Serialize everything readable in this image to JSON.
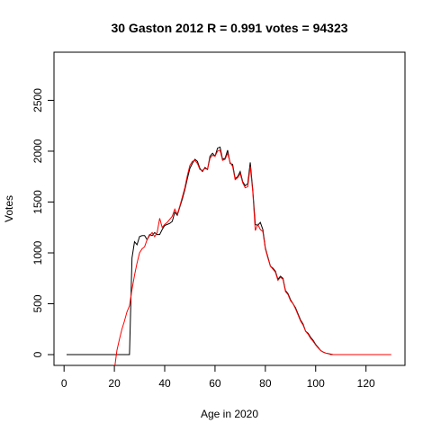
{
  "chart_data": {
    "type": "line",
    "title": "30 Gaston 2012 R = 0.991 votes = 94323",
    "xlabel": "Age in 2020",
    "ylabel": "Votes",
    "x": [
      1,
      2,
      3,
      4,
      5,
      6,
      7,
      8,
      9,
      10,
      11,
      12,
      13,
      14,
      15,
      16,
      17,
      18,
      19,
      20,
      21,
      22,
      23,
      24,
      25,
      26,
      27,
      28,
      29,
      30,
      31,
      32,
      33,
      34,
      35,
      36,
      37,
      38,
      39,
      40,
      41,
      42,
      43,
      44,
      45,
      46,
      47,
      48,
      49,
      50,
      51,
      52,
      53,
      54,
      55,
      56,
      57,
      58,
      59,
      60,
      61,
      62,
      63,
      64,
      65,
      66,
      67,
      68,
      69,
      70,
      71,
      72,
      73,
      74,
      75,
      76,
      77,
      78,
      79,
      80,
      81,
      82,
      83,
      84,
      85,
      86,
      87,
      88,
      89,
      90,
      91,
      92,
      93,
      94,
      95,
      96,
      97,
      98,
      99,
      100,
      101,
      102,
      103,
      104,
      105,
      106,
      107,
      108,
      109,
      110,
      111,
      112,
      113,
      114,
      115,
      116,
      117,
      118,
      119,
      120,
      121,
      122,
      123,
      124,
      125,
      126,
      127,
      128,
      129,
      130
    ],
    "series": [
      {
        "color": "#000000",
        "values": [
          0,
          0,
          0,
          0,
          0,
          0,
          0,
          0,
          0,
          0,
          0,
          0,
          0,
          0,
          0,
          0,
          0,
          0,
          0,
          0,
          0,
          0,
          0,
          0,
          0,
          0,
          950,
          1110,
          1080,
          1160,
          1170,
          1170,
          1130,
          1180,
          1170,
          1200,
          1180,
          1180,
          1230,
          1270,
          1280,
          1290,
          1310,
          1400,
          1370,
          1450,
          1530,
          1620,
          1730,
          1830,
          1880,
          1920,
          1900,
          1830,
          1800,
          1840,
          1820,
          1950,
          1980,
          1950,
          2030,
          2040,
          1920,
          1930,
          2010,
          1880,
          1870,
          1730,
          1750,
          1800,
          1700,
          1660,
          1680,
          1890,
          1620,
          1280,
          1270,
          1300,
          1230,
          1050,
          960,
          870,
          850,
          820,
          740,
          770,
          750,
          630,
          600,
          540,
          500,
          460,
          400,
          340,
          300,
          230,
          210,
          170,
          140,
          100,
          70,
          40,
          25,
          15,
          10,
          5,
          0,
          0,
          0,
          0,
          0,
          0,
          0,
          0,
          0,
          0,
          0,
          0,
          0,
          0,
          0,
          0,
          0,
          0,
          0,
          0,
          0,
          0,
          0,
          0
        ]
      },
      {
        "color": "#ff0000",
        "values": [
          null,
          null,
          null,
          null,
          null,
          null,
          null,
          null,
          null,
          null,
          null,
          null,
          null,
          null,
          null,
          null,
          null,
          null,
          null,
          -150,
          40,
          150,
          250,
          330,
          420,
          480,
          640,
          780,
          900,
          1000,
          1040,
          1060,
          1130,
          1170,
          1200,
          1160,
          1200,
          1340,
          1250,
          1280,
          1300,
          1330,
          1360,
          1430,
          1380,
          1460,
          1550,
          1640,
          1760,
          1860,
          1900,
          1910,
          1880,
          1820,
          1810,
          1830,
          1820,
          1930,
          1960,
          1950,
          2000,
          2010,
          1910,
          1920,
          1980,
          1890,
          1850,
          1720,
          1740,
          1780,
          1690,
          1640,
          1650,
          1850,
          1600,
          1220,
          1280,
          1230,
          1210,
          1040,
          950,
          870,
          840,
          810,
          730,
          760,
          740,
          620,
          590,
          530,
          500,
          450,
          390,
          330,
          290,
          230,
          200,
          160,
          130,
          95,
          65,
          40,
          25,
          15,
          10,
          0,
          0,
          0,
          0,
          0,
          0,
          0,
          0,
          0,
          0,
          0,
          0,
          0,
          0,
          0,
          0,
          0,
          0,
          0,
          0,
          0,
          0,
          0,
          0,
          0
        ]
      }
    ],
    "xlim": [
      -4,
      135.5
    ],
    "ylim": [
      -106,
      2973
    ],
    "xticks": [
      0,
      20,
      40,
      60,
      80,
      100,
      120
    ],
    "yticks": [
      0,
      500,
      1000,
      1500,
      2000,
      2500
    ]
  }
}
